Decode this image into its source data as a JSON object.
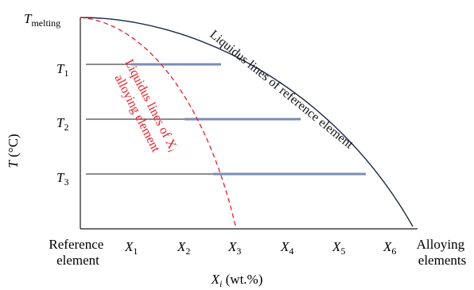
{
  "chart_data": {
    "type": "line",
    "title": "",
    "ylabel": {
      "base": "T",
      "unit": " (°C)"
    },
    "xlabel": {
      "base": "X",
      "sub": "i",
      "unit": " (wt.%)"
    },
    "y_ticks": [
      {
        "base": "T",
        "sub": "melting"
      },
      {
        "base": "T",
        "sub": "1"
      },
      {
        "base": "T",
        "sub": "2"
      },
      {
        "base": "T",
        "sub": "3"
      }
    ],
    "x_ticks": [
      {
        "base": "X",
        "sub": "1"
      },
      {
        "base": "X",
        "sub": "2"
      },
      {
        "base": "X",
        "sub": "3"
      },
      {
        "base": "X",
        "sub": "4"
      },
      {
        "base": "X",
        "sub": "5"
      },
      {
        "base": "X",
        "sub": "6"
      }
    ],
    "x_end_labels": {
      "left": [
        "Reference",
        "element"
      ],
      "right": [
        "Alloying",
        "elements"
      ]
    },
    "series": [
      {
        "name": "Liquidus lines of reference element",
        "style": "solid",
        "color": "#1c2746"
      },
      {
        "name": "Liquidus lines of X_i alloying element",
        "style": "dashed",
        "color": "#e8202a"
      }
    ],
    "annotations": {
      "reference_curve_label": "Liquidus lines of reference element",
      "alloy_curve_label_line1": "Liquidus lines of X",
      "alloy_curve_label_sub": "i",
      "alloy_curve_label_line2": "alloying element"
    },
    "tie_lines": [
      {
        "level": "T1",
        "from": "X1",
        "to": "X2"
      },
      {
        "level": "T2",
        "from": "X2",
        "to": "X4"
      },
      {
        "level": "T3",
        "from": "X3",
        "to": "X5"
      }
    ],
    "colors": {
      "axis": "#1a1a1a",
      "reference_curve": "#1c2746",
      "alloy_curve": "#e8202a",
      "tie_line": "#7b8cb5"
    }
  }
}
